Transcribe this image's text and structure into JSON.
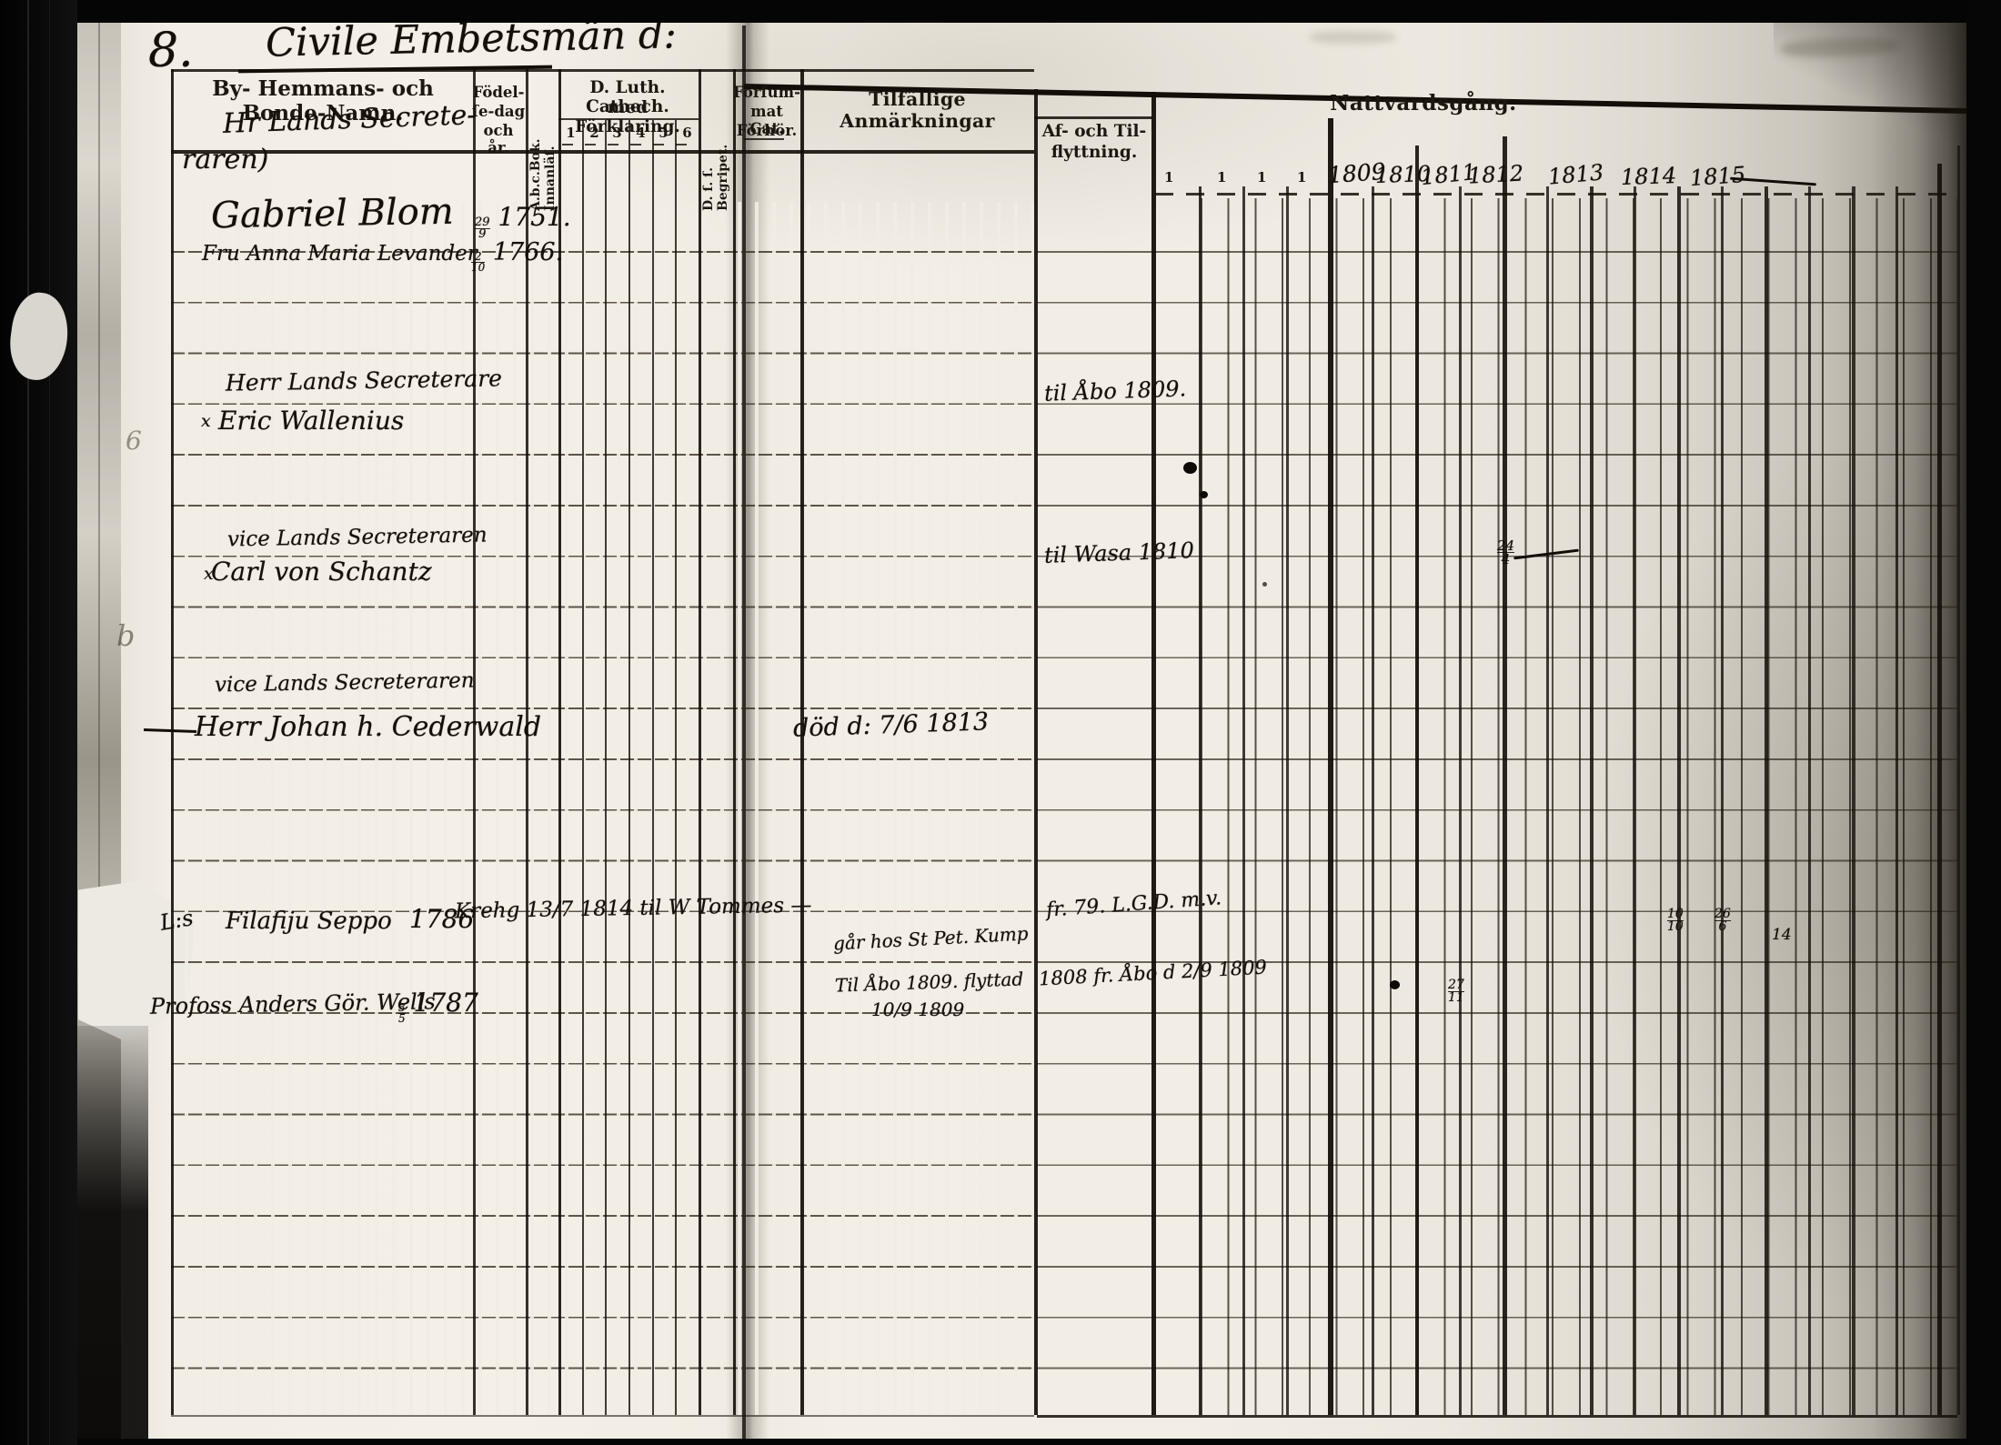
{
  "document": {
    "page_number": "8.",
    "section_title": "Civile Embetsmän d:"
  },
  "left_headers": {
    "names_1": "By- Hemmans- och",
    "names_2": "Bonde-Namn.",
    "birth_1": "Födel-",
    "birth_2": "ſe-dag",
    "birth_3": "och år.",
    "abc_1": "A.b.c.Bok.",
    "abc_2": "Innanläſ.",
    "cat_1": "D. Luth. Cathech.",
    "cat_2": "med Förklaring.",
    "cat_cols": [
      "1",
      "2",
      "3",
      "4",
      "5",
      "6"
    ],
    "begripet_1": "D. ſ. ſ.",
    "begripet_2": "Begripet.",
    "forsummat_1": "Förſum-",
    "forsummat_2": "mat Cat.",
    "forsummat_3": "Förhör.",
    "remarks": "Tilfällige Anmärkningar"
  },
  "right_headers": {
    "moving_1": "Af- och Til-",
    "moving_2": "flyttning.",
    "communion": "Nattvardsgång.",
    "ticks": [
      "1",
      "1",
      "1",
      "1"
    ],
    "years": [
      "1809",
      "1810",
      "1811",
      "1812",
      "1813",
      "1814",
      "1815"
    ]
  },
  "entries": {
    "e1": {
      "title_1": "Hr Lands Secrete-",
      "title_2": "raren)",
      "name": "Gabriel Blom",
      "birth_num": "29",
      "birth_den": "9",
      "birth_year": "1751."
    },
    "e2": {
      "name": "Fru Anna Maria Levander",
      "birth_num": "2",
      "birth_den": "10",
      "birth_year": "1766."
    },
    "e3": {
      "mark": "x",
      "title": "Herr Lands Secreterare",
      "name": "Eric Wallenius",
      "moving": "til Åbo 1809."
    },
    "e4": {
      "mark": "x",
      "title": "vice Lands Secreteraren",
      "name": "Carl von Schantz",
      "moving": "til Wasa 1810",
      "comm_num": "24",
      "comm_den": "4"
    },
    "e5": {
      "title": "vice Lands Secreteraren",
      "name": "Herr Johan h. Cederwald",
      "remark": "död d: 7/6 1813"
    },
    "e6": {
      "prefix": "L:s",
      "name": "Filafiju Seppo",
      "birth_year": "1786",
      "cat_note": "Krehg 13/7 1814 til W Tommes —",
      "remark": "går hos St Pet. Kump",
      "moving": "fr. 79. L.G.D. m.v.",
      "m1_num": "10",
      "m1_den": "10",
      "m2_num": "26",
      "m2_den": "6",
      "m3": "14"
    },
    "e7": {
      "name": "Profoss Anders Gör. Wells",
      "birth_num": "3",
      "birth_den": "5",
      "birth_year": "1787",
      "remark_1": "Til Åbo 1809. flyttad",
      "remark_2": "10/9 1809",
      "moving": "1808 fr. Åbo d 2/9 1809",
      "m1_num": "27",
      "m1_den": "11"
    }
  },
  "margin_marks": {
    "m1": "6",
    "m2": "b"
  }
}
